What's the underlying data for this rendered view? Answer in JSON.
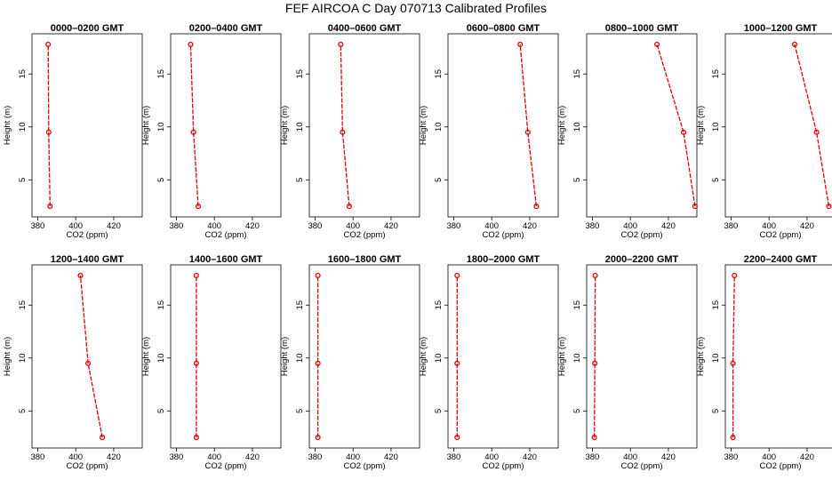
{
  "title": "FEF AIRCOA C  Day 070713  Calibrated Profiles",
  "chart_data": [
    {
      "type": "line",
      "title": "0000–0200 GMT",
      "xlabel": "CO2 (ppm)",
      "ylabel": "Height (m)",
      "xlim": [
        377,
        435
      ],
      "ylim": [
        1.5,
        18.8
      ],
      "xticks": [
        380,
        400,
        420
      ],
      "yticks": [
        5,
        10,
        15
      ],
      "x": [
        386.5,
        385.8,
        385.5
      ],
      "y": [
        2.5,
        9.5,
        17.8
      ]
    },
    {
      "type": "line",
      "title": "0200–0400 GMT",
      "xlabel": "CO2 (ppm)",
      "ylabel": "Height (m)",
      "xlim": [
        377,
        435
      ],
      "ylim": [
        1.5,
        18.8
      ],
      "xticks": [
        380,
        400,
        420
      ],
      "yticks": [
        5,
        10,
        15
      ],
      "x": [
        391.5,
        389.0,
        387.5
      ],
      "y": [
        2.5,
        9.5,
        17.8
      ]
    },
    {
      "type": "line",
      "title": "0400–0600 GMT",
      "xlabel": "CO2 (ppm)",
      "ylabel": "Height (m)",
      "xlim": [
        377,
        435
      ],
      "ylim": [
        1.5,
        18.8
      ],
      "xticks": [
        380,
        400,
        420
      ],
      "yticks": [
        5,
        10,
        15
      ],
      "x": [
        398.0,
        394.5,
        393.5
      ],
      "y": [
        2.5,
        9.5,
        17.8
      ]
    },
    {
      "type": "line",
      "title": "0600–0800 GMT",
      "xlabel": "CO2 (ppm)",
      "ylabel": "Height (m)",
      "xlim": [
        377,
        435
      ],
      "ylim": [
        1.5,
        18.8
      ],
      "xticks": [
        380,
        400,
        420
      ],
      "yticks": [
        5,
        10,
        15
      ],
      "x": [
        423.5,
        419.0,
        415.0
      ],
      "y": [
        2.5,
        9.5,
        17.8
      ]
    },
    {
      "type": "line",
      "title": "0800–1000 GMT",
      "xlabel": "CO2 (ppm)",
      "ylabel": "Height (m)",
      "xlim": [
        377,
        435
      ],
      "ylim": [
        1.5,
        18.8
      ],
      "xticks": [
        380,
        400,
        420
      ],
      "yticks": [
        5,
        10,
        15
      ],
      "x": [
        434.0,
        428.0,
        414.0
      ],
      "y": [
        2.5,
        9.5,
        17.8
      ]
    },
    {
      "type": "line",
      "title": "1000–1200 GMT",
      "xlabel": "CO2 (ppm)",
      "ylabel": "Height (m)",
      "xlim": [
        377,
        435
      ],
      "ylim": [
        1.5,
        18.8
      ],
      "xticks": [
        380,
        400,
        420
      ],
      "yticks": [
        5,
        10,
        15
      ],
      "x": [
        431.5,
        425.0,
        413.5
      ],
      "y": [
        2.5,
        9.5,
        17.8
      ]
    },
    {
      "type": "line",
      "title": "1200–1400 GMT",
      "xlabel": "CO2 (ppm)",
      "ylabel": "Height (m)",
      "xlim": [
        377,
        435
      ],
      "ylim": [
        1.5,
        18.8
      ],
      "xticks": [
        380,
        400,
        420
      ],
      "yticks": [
        5,
        10,
        15
      ],
      "x": [
        414.0,
        406.5,
        402.5
      ],
      "y": [
        2.5,
        9.5,
        17.8
      ]
    },
    {
      "type": "line",
      "title": "1400–1600 GMT",
      "xlabel": "CO2 (ppm)",
      "ylabel": "Height (m)",
      "xlim": [
        377,
        435
      ],
      "ylim": [
        1.5,
        18.8
      ],
      "xticks": [
        380,
        400,
        420
      ],
      "yticks": [
        5,
        10,
        15
      ],
      "x": [
        390.5,
        390.5,
        390.5
      ],
      "y": [
        2.5,
        9.5,
        17.8
      ]
    },
    {
      "type": "line",
      "title": "1600–1800 GMT",
      "xlabel": "CO2 (ppm)",
      "ylabel": "Height (m)",
      "xlim": [
        377,
        435
      ],
      "ylim": [
        1.5,
        18.8
      ],
      "xticks": [
        380,
        400,
        420
      ],
      "yticks": [
        5,
        10,
        15
      ],
      "x": [
        381.5,
        381.5,
        381.5
      ],
      "y": [
        2.5,
        9.5,
        17.8
      ]
    },
    {
      "type": "line",
      "title": "1800–2000 GMT",
      "xlabel": "CO2 (ppm)",
      "ylabel": "Height (m)",
      "xlim": [
        377,
        435
      ],
      "ylim": [
        1.5,
        18.8
      ],
      "xticks": [
        380,
        400,
        420
      ],
      "yticks": [
        5,
        10,
        15
      ],
      "x": [
        381.8,
        381.8,
        381.8
      ],
      "y": [
        2.5,
        9.5,
        17.8
      ]
    },
    {
      "type": "line",
      "title": "2000–2200 GMT",
      "xlabel": "CO2 (ppm)",
      "ylabel": "Height (m)",
      "xlim": [
        377,
        435
      ],
      "ylim": [
        1.5,
        18.8
      ],
      "xticks": [
        380,
        400,
        420
      ],
      "yticks": [
        5,
        10,
        15
      ],
      "x": [
        381.0,
        381.3,
        381.5
      ],
      "y": [
        2.5,
        9.5,
        17.8
      ]
    },
    {
      "type": "line",
      "title": "2200–2400 GMT",
      "xlabel": "CO2 (ppm)",
      "ylabel": "Height (m)",
      "xlim": [
        377,
        435
      ],
      "ylim": [
        1.5,
        18.8
      ],
      "xticks": [
        380,
        400,
        420
      ],
      "yticks": [
        5,
        10,
        15
      ],
      "x": [
        381.0,
        381.0,
        381.8
      ],
      "y": [
        2.5,
        9.5,
        17.8
      ]
    }
  ]
}
